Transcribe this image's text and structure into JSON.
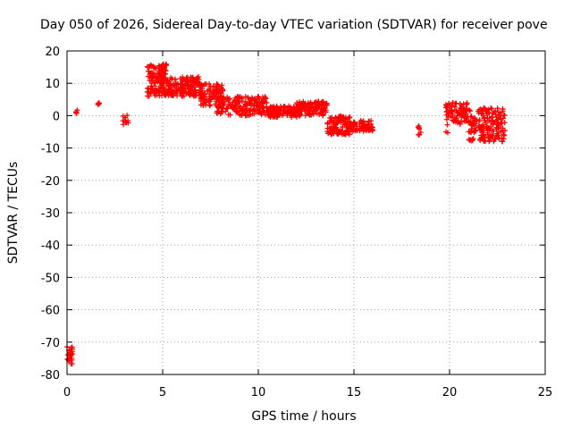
{
  "chart_data": {
    "type": "scatter",
    "title": "Day 050 of 2026, Sidereal Day-to-day VTEC variation (SDTVAR) for receiver pove",
    "xlabel": "GPS time / hours",
    "ylabel": "SDTVAR / TECUs",
    "xlim": [
      0,
      25
    ],
    "ylim": [
      -80,
      20
    ],
    "xticks": [
      0,
      5,
      10,
      15,
      20,
      25
    ],
    "yticks": [
      20,
      10,
      0,
      -10,
      -20,
      -30,
      -40,
      -50,
      -60,
      -70,
      -80
    ],
    "grid": true,
    "marker": "+",
    "color": "#ff0000",
    "clusters": [
      {
        "x": [
          0.0,
          0.3
        ],
        "y": [
          -77,
          -71
        ],
        "count": 25
      },
      {
        "x": [
          0.4,
          0.6
        ],
        "y": [
          0.5,
          1.8
        ],
        "count": 6
      },
      {
        "x": [
          1.5,
          1.7
        ],
        "y": [
          3,
          4.5
        ],
        "count": 4
      },
      {
        "x": [
          2.9,
          3.2
        ],
        "y": [
          -3,
          0.5
        ],
        "count": 10
      },
      {
        "x": [
          4.2,
          5.2
        ],
        "y": [
          6,
          16
        ],
        "count": 140
      },
      {
        "x": [
          5.2,
          7.0
        ],
        "y": [
          6,
          12
        ],
        "count": 170
      },
      {
        "x": [
          7.0,
          8.2
        ],
        "y": [
          3,
          10
        ],
        "count": 110
      },
      {
        "x": [
          7.8,
          10.5
        ],
        "y": [
          0,
          6
        ],
        "count": 190
      },
      {
        "x": [
          10.5,
          12.2
        ],
        "y": [
          -0.5,
          3
        ],
        "count": 140
      },
      {
        "x": [
          12.0,
          13.6
        ],
        "y": [
          0,
          4.5
        ],
        "count": 120
      },
      {
        "x": [
          13.6,
          14.8
        ],
        "y": [
          -6,
          0
        ],
        "count": 110
      },
      {
        "x": [
          14.8,
          16.0
        ],
        "y": [
          -5,
          -1.5
        ],
        "count": 80
      },
      {
        "x": [
          18.3,
          18.5
        ],
        "y": [
          -7,
          -3
        ],
        "count": 8
      },
      {
        "x": [
          19.8,
          20.0
        ],
        "y": [
          -6,
          -5
        ],
        "count": 2
      },
      {
        "x": [
          19.8,
          21.0
        ],
        "y": [
          -3,
          4
        ],
        "count": 90
      },
      {
        "x": [
          21.0,
          22.9
        ],
        "y": [
          -8,
          2.5
        ],
        "count": 180
      }
    ]
  }
}
